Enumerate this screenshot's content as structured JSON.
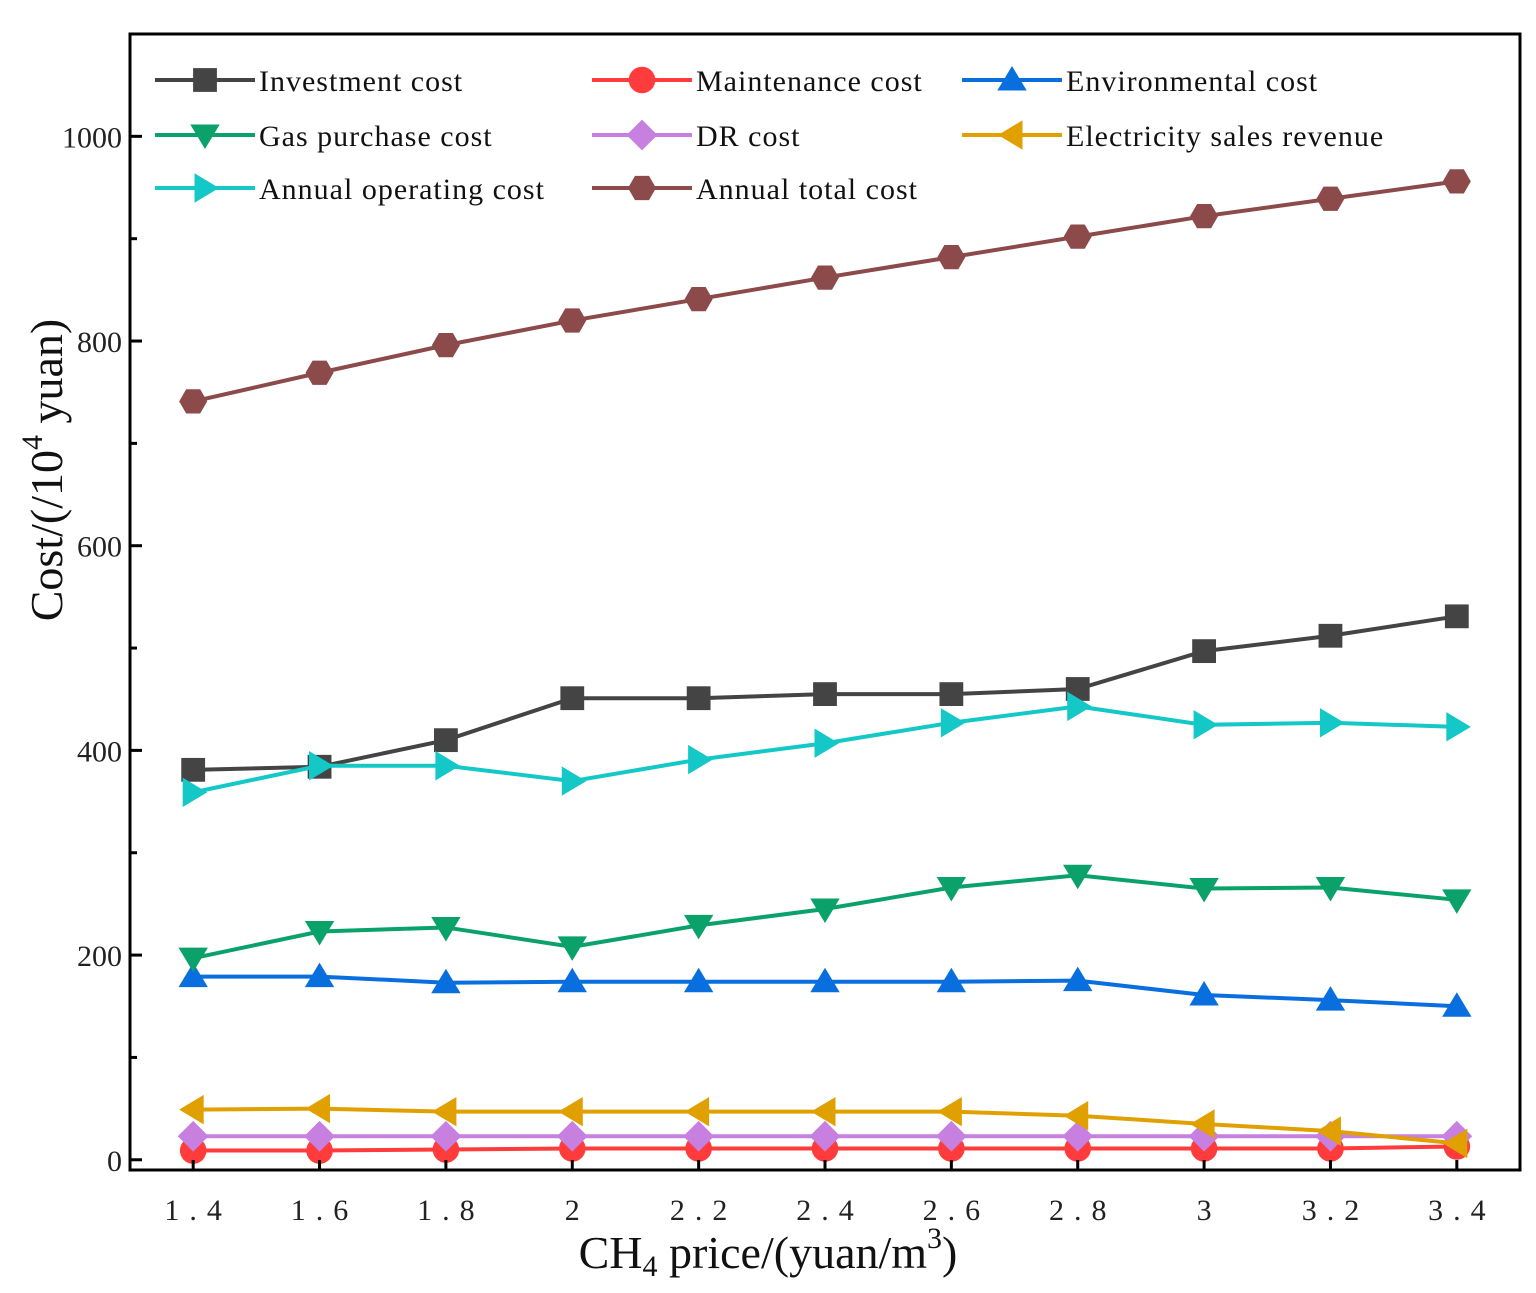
{
  "chart_data": {
    "type": "line",
    "xlabel_main": "CH",
    "xlabel_sub": "4",
    "xlabel_rest": " price/(yuan/m",
    "xlabel_sup": "3",
    "xlabel_end": ")",
    "ylabel_main": "Cost/(/10",
    "ylabel_sup": "4",
    "ylabel_end": " yuan)",
    "x": [
      1.4,
      1.6,
      1.8,
      2,
      2.2,
      2.4,
      2.6,
      2.8,
      3,
      3.2,
      3.4
    ],
    "x_tick_labels": [
      "1.4",
      "1.6",
      "1.8",
      "2",
      "2.2",
      "2.4",
      "2.6",
      "2.8",
      "3",
      "3.2",
      "3.4"
    ],
    "xlim": [
      1.3,
      3.5
    ],
    "ylim": [
      -10,
      1100
    ],
    "y_ticks": [
      0,
      200,
      400,
      600,
      800,
      1000
    ],
    "y_minor_ticks": [
      100,
      300,
      500,
      700,
      900
    ],
    "series": [
      {
        "name": "Investment cost",
        "color": "#444444",
        "marker": "square",
        "values": [
          381,
          384,
          410,
          451,
          451,
          455,
          455,
          460,
          497,
          512,
          531
        ]
      },
      {
        "name": "Maintenance cost",
        "color": "#ff3b3b",
        "marker": "circle",
        "values": [
          9,
          9,
          10,
          11,
          11,
          11,
          11,
          11,
          11,
          11,
          13
        ]
      },
      {
        "name": "Environmental cost",
        "color": "#0a6fde",
        "marker": "triangle-up",
        "values": [
          179,
          179,
          173,
          174,
          174,
          174,
          174,
          175,
          161,
          156,
          150
        ]
      },
      {
        "name": "Gas purchase cost",
        "color": "#0aa26a",
        "marker": "triangle-down",
        "values": [
          197,
          223,
          227,
          208,
          229,
          245,
          266,
          278,
          265,
          266,
          254
        ]
      },
      {
        "name": "DR cost",
        "color": "#c77fe0",
        "marker": "diamond",
        "values": [
          23,
          23,
          23,
          23,
          23,
          23,
          23,
          23,
          23,
          23,
          23
        ]
      },
      {
        "name": "Electricity sales revenue",
        "color": "#e0a000",
        "marker": "triangle-left",
        "values": [
          49,
          50,
          47,
          47,
          47,
          47,
          47,
          43,
          35,
          28,
          16
        ]
      },
      {
        "name": "Annual operating cost",
        "color": "#14c8c8",
        "marker": "triangle-right",
        "values": [
          359,
          385,
          385,
          370,
          391,
          407,
          427,
          443,
          425,
          427,
          423
        ]
      },
      {
        "name": "Annual total cost",
        "color": "#8c4a4a",
        "marker": "hexagon",
        "values": [
          741,
          769,
          796,
          820,
          841,
          862,
          882,
          902,
          922,
          939,
          956
        ]
      }
    ]
  }
}
